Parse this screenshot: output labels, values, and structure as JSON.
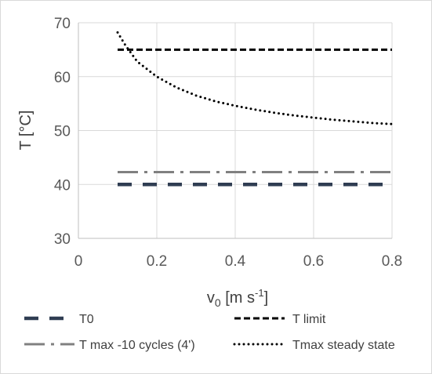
{
  "chart_data": {
    "type": "line",
    "xlabel_main": "v",
    "xlabel_sub": "0",
    "xlabel_unit_pre": " [m s",
    "xlabel_unit_sup": "-1",
    "xlabel_unit_post": "]",
    "ylabel": "T [°C]",
    "xlim": [
      0,
      0.8
    ],
    "ylim": [
      30,
      70
    ],
    "x_ticks": [
      "0",
      "0.2",
      "0.4",
      "0.6",
      "0.8"
    ],
    "y_ticks": [
      "30",
      "40",
      "50",
      "60",
      "70"
    ],
    "grid": true,
    "legend_position": "bottom",
    "series": [
      {
        "name": "T0",
        "style": "long-dash",
        "color": "#2f3d52",
        "x": [
          0.1,
          0.8
        ],
        "y": [
          40,
          40
        ]
      },
      {
        "name": "T limit",
        "style": "dash",
        "color": "#000000",
        "x": [
          0.1,
          0.8
        ],
        "y": [
          65,
          65
        ]
      },
      {
        "name": "T max -10 cycles (4')",
        "style": "dash-dot",
        "color": "#808080",
        "x": [
          0.1,
          0.8
        ],
        "y": [
          42.3,
          42.3
        ]
      },
      {
        "name": "Tmax steady state",
        "style": "dot",
        "color": "#000000",
        "x": [
          0.1,
          0.12,
          0.15,
          0.2,
          0.25,
          0.3,
          0.35,
          0.4,
          0.45,
          0.5,
          0.55,
          0.6,
          0.65,
          0.7,
          0.75,
          0.8
        ],
        "y": [
          68.2,
          65.8,
          62.8,
          60.0,
          58.0,
          56.5,
          55.4,
          54.6,
          53.9,
          53.3,
          52.8,
          52.4,
          52.0,
          51.7,
          51.4,
          51.2
        ]
      }
    ]
  }
}
